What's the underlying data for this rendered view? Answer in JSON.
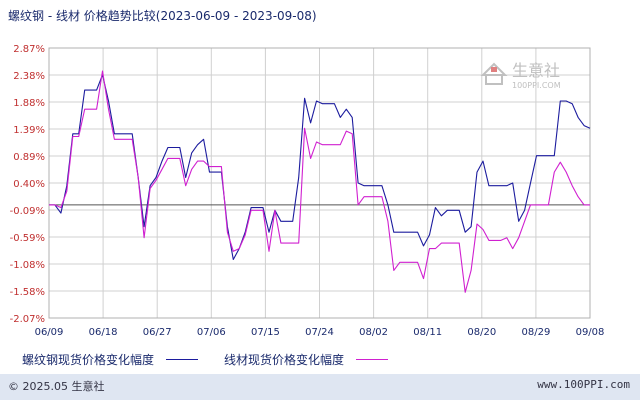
{
  "header": {
    "title": "螺纹钢 - 线材 价格趋势比较(2023-06-09 - 2023-09-08)"
  },
  "watermark": {
    "name": "生意社",
    "url": "100PPI.COM"
  },
  "footer": {
    "left": "© 2025.05 生意社",
    "right": "www.100PPI.com"
  },
  "colors": {
    "series1": "#1c1c9e",
    "series2": "#d020d0",
    "axis": "#c03030",
    "grid": "#d0d0d0",
    "zero": "#555555"
  },
  "chart_data": {
    "type": "line",
    "title": "螺纹钢 - 线材 价格趋势比较(2023-06-09 - 2023-09-08)",
    "y_ticks": [
      "2.87%",
      "2.38%",
      "1.88%",
      "1.39%",
      "0.89%",
      "0.40%",
      "-0.09%",
      "-0.59%",
      "-1.08%",
      "-1.58%",
      "-2.07%"
    ],
    "ylim": [
      -2.07,
      2.87
    ],
    "x_ticks": [
      "06/09",
      "06/18",
      "06/27",
      "07/06",
      "07/15",
      "07/24",
      "08/02",
      "08/11",
      "08/20",
      "08/29",
      "09/08"
    ],
    "xlim": [
      0,
      91
    ],
    "grid": true,
    "legend_position": "bottom",
    "series": [
      {
        "name": "螺纹钢现货价格变化幅度",
        "x": [
          0,
          1,
          2,
          3,
          4,
          5,
          6,
          7,
          8,
          9,
          10,
          11,
          12,
          13,
          14,
          15,
          16,
          17,
          18,
          19,
          20,
          21,
          22,
          23,
          24,
          25,
          26,
          27,
          28,
          29,
          30,
          31,
          32,
          33,
          34,
          35,
          36,
          37,
          38,
          39,
          40,
          41,
          42,
          43,
          44,
          45,
          46,
          47,
          48,
          49,
          50,
          51,
          52,
          53,
          54,
          55,
          56,
          57,
          58,
          59,
          60,
          61,
          62,
          63,
          64,
          65,
          66,
          67,
          68,
          69,
          70,
          71,
          72,
          73,
          74,
          75,
          76,
          77,
          78,
          79,
          80,
          81,
          82,
          83,
          84,
          85,
          86,
          87,
          88,
          89,
          90,
          91
        ],
        "values": [
          0.0,
          0.0,
          -0.15,
          0.35,
          1.3,
          1.3,
          2.1,
          2.1,
          2.1,
          2.38,
          1.9,
          1.3,
          1.3,
          1.3,
          1.3,
          0.5,
          -0.4,
          0.35,
          0.5,
          0.8,
          1.05,
          1.05,
          1.05,
          0.5,
          0.95,
          1.1,
          1.2,
          0.6,
          0.6,
          0.6,
          -0.4,
          -1.0,
          -0.8,
          -0.5,
          -0.05,
          -0.05,
          -0.05,
          -0.5,
          -0.1,
          -0.3,
          -0.3,
          -0.3,
          0.5,
          1.95,
          1.5,
          1.9,
          1.85,
          1.85,
          1.85,
          1.6,
          1.75,
          1.6,
          0.4,
          0.35,
          0.35,
          0.35,
          0.35,
          0.0,
          -0.5,
          -0.5,
          -0.5,
          -0.5,
          -0.5,
          -0.75,
          -0.55,
          -0.05,
          -0.2,
          -0.1,
          -0.1,
          -0.1,
          -0.5,
          -0.4,
          0.6,
          0.8,
          0.35,
          0.35,
          0.35,
          0.35,
          0.4,
          -0.3,
          -0.1,
          0.4,
          0.9,
          0.9,
          0.9,
          0.9,
          1.9,
          1.9,
          1.85,
          1.6,
          1.45,
          1.4
        ]
      },
      {
        "name": "线材现货价格变化幅度",
        "x": [
          0,
          1,
          2,
          3,
          4,
          5,
          6,
          7,
          8,
          9,
          10,
          11,
          12,
          13,
          14,
          15,
          16,
          17,
          18,
          19,
          20,
          21,
          22,
          23,
          24,
          25,
          26,
          27,
          28,
          29,
          30,
          31,
          32,
          33,
          34,
          35,
          36,
          37,
          38,
          39,
          40,
          41,
          42,
          43,
          44,
          45,
          46,
          47,
          48,
          49,
          50,
          51,
          52,
          53,
          54,
          55,
          56,
          57,
          58,
          59,
          60,
          61,
          62,
          63,
          64,
          65,
          66,
          67,
          68,
          69,
          70,
          71,
          72,
          73,
          74,
          75,
          76,
          77,
          78,
          79,
          80,
          81,
          82,
          83,
          84,
          85,
          86,
          87,
          88,
          89,
          90,
          91
        ],
        "values": [
          0.0,
          0.0,
          -0.05,
          0.25,
          1.25,
          1.25,
          1.75,
          1.75,
          1.75,
          2.45,
          1.75,
          1.2,
          1.2,
          1.2,
          1.2,
          0.5,
          -0.6,
          0.3,
          0.45,
          0.65,
          0.85,
          0.85,
          0.85,
          0.35,
          0.65,
          0.8,
          0.8,
          0.7,
          0.7,
          0.7,
          -0.5,
          -0.85,
          -0.8,
          -0.55,
          -0.1,
          -0.1,
          -0.1,
          -0.85,
          -0.1,
          -0.7,
          -0.7,
          -0.7,
          -0.7,
          1.4,
          0.85,
          1.15,
          1.1,
          1.1,
          1.1,
          1.1,
          1.35,
          1.3,
          0.0,
          0.15,
          0.15,
          0.15,
          0.15,
          -0.3,
          -1.2,
          -1.05,
          -1.05,
          -1.05,
          -1.05,
          -1.35,
          -0.8,
          -0.8,
          -0.7,
          -0.7,
          -0.7,
          -0.7,
          -1.6,
          -1.2,
          -0.35,
          -0.45,
          -0.65,
          -0.65,
          -0.65,
          -0.6,
          -0.8,
          -0.6,
          -0.3,
          0.0,
          0.0,
          0.0,
          0.0,
          0.6,
          0.78,
          0.6,
          0.35,
          0.15,
          0.0,
          0.0
        ]
      }
    ]
  }
}
